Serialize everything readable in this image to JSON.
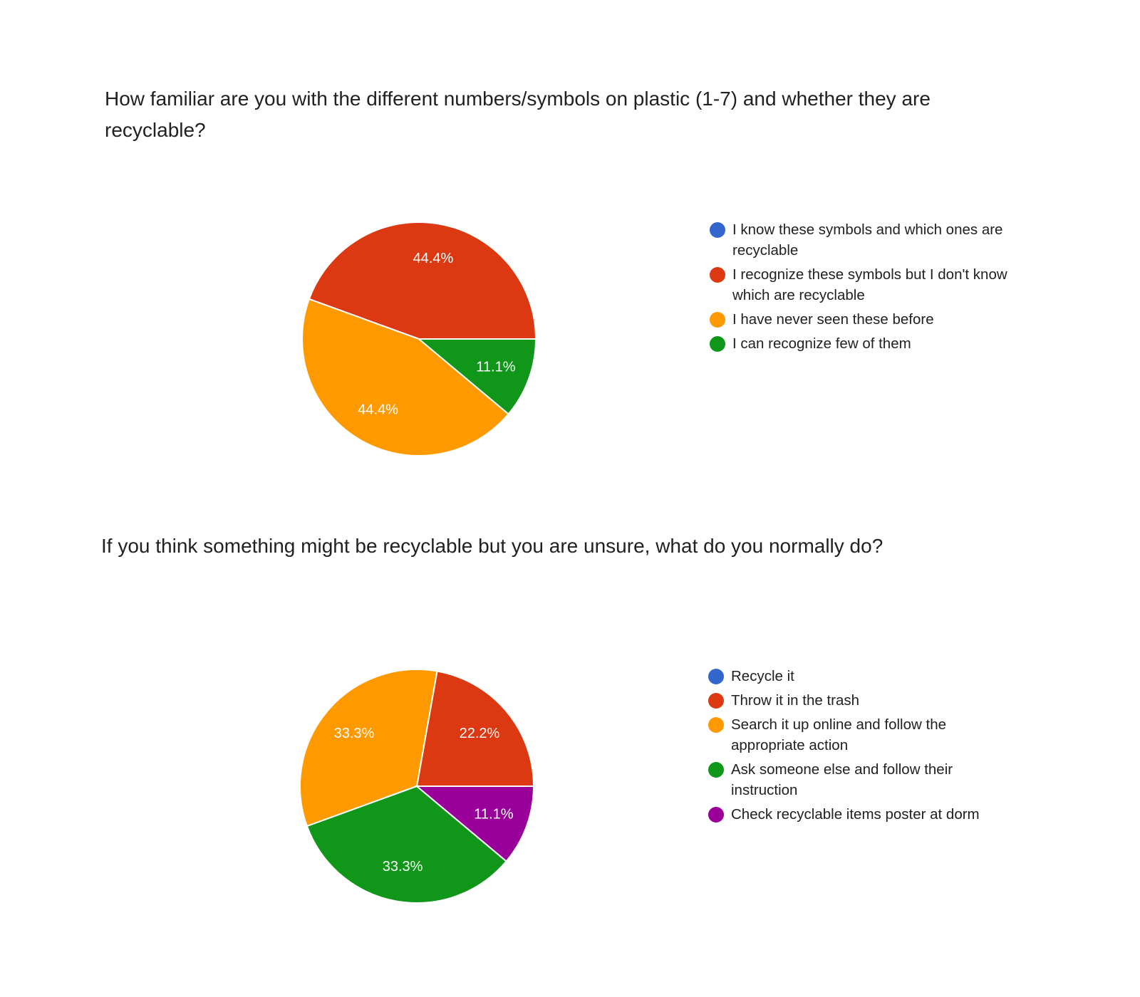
{
  "chart_data": [
    {
      "type": "pie",
      "title": "How familiar are you with the different numbers/symbols on plastic (1-7) and whether they are recyclable?",
      "legend_position": "right",
      "slices": [
        {
          "label": "I know these symbols and which ones are recyclable",
          "value": 0,
          "display": "",
          "color": "#3366cc"
        },
        {
          "label": "I recognize these symbols but I don't know which are recyclable",
          "value": 44.4,
          "display": "44.4%",
          "color": "#dc3912"
        },
        {
          "label": "I have never seen these before",
          "value": 44.4,
          "display": "44.4%",
          "color": "#ff9900"
        },
        {
          "label": "I can recognize few of them",
          "value": 11.1,
          "display": "11.1%",
          "color": "#109618"
        }
      ]
    },
    {
      "type": "pie",
      "title": "If you think something might be recyclable but you are unsure, what do you normally do?",
      "legend_position": "right",
      "slices": [
        {
          "label": "Recycle it",
          "value": 0,
          "display": "",
          "color": "#3366cc"
        },
        {
          "label": "Throw it in the trash",
          "value": 22.2,
          "display": "22.2%",
          "color": "#dc3912"
        },
        {
          "label": "Search it up online and follow the appropriate action",
          "value": 33.3,
          "display": "33.3%",
          "color": "#ff9900"
        },
        {
          "label": "Ask someone else and follow their instruction",
          "value": 33.3,
          "display": "33.3%",
          "color": "#109618"
        },
        {
          "label": "Check recyclable items poster at dorm",
          "value": 11.1,
          "display": "11.1%",
          "color": "#990099"
        }
      ]
    }
  ]
}
